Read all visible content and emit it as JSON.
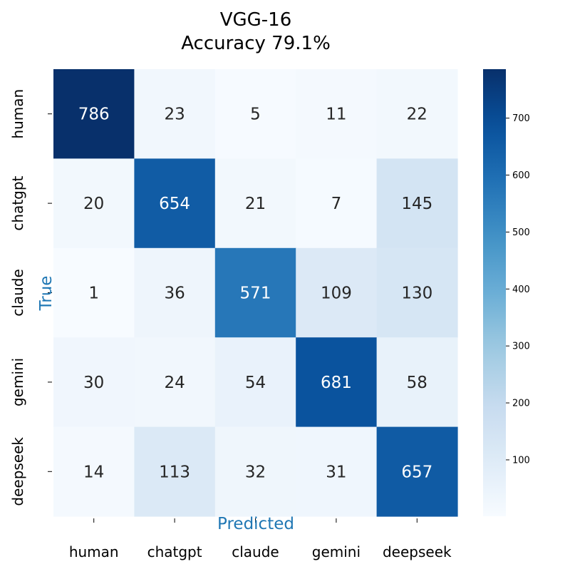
{
  "chart_data": {
    "type": "heatmap",
    "title_lines": [
      "VGG-16",
      "Accuracy 79.1%"
    ],
    "xlabel": "Predicted",
    "ylabel": "True",
    "x_categories": [
      "human",
      "chatgpt",
      "claude",
      "gemini",
      "deepseek"
    ],
    "y_categories": [
      "human",
      "chatgpt",
      "claude",
      "gemini",
      "deepseek"
    ],
    "values": [
      [
        786,
        23,
        5,
        11,
        22
      ],
      [
        20,
        654,
        21,
        7,
        145
      ],
      [
        1,
        36,
        571,
        109,
        130
      ],
      [
        30,
        24,
        54,
        681,
        58
      ],
      [
        14,
        113,
        32,
        31,
        657
      ]
    ],
    "colorbar": {
      "colormap": "Blues",
      "range": [
        1,
        786
      ],
      "ticks": [
        100,
        200,
        300,
        400,
        500,
        600,
        700
      ]
    },
    "colors": {
      "axis_label": "#1f77b4",
      "dark_text": "#262626",
      "light_text": "#ffffff"
    }
  }
}
